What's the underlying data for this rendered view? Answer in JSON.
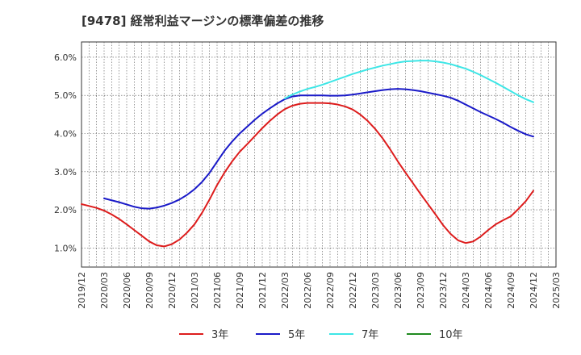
{
  "chart_data": {
    "type": "line",
    "title": "[9478]  経常利益マージンの標準偏差の推移",
    "xlabel": "",
    "ylabel": "",
    "ylim": [
      0.5,
      6.4
    ],
    "y_ticks": [
      {
        "v": 1.0,
        "label": "1.0%"
      },
      {
        "v": 2.0,
        "label": "2.0%"
      },
      {
        "v": 3.0,
        "label": "3.0%"
      },
      {
        "v": 4.0,
        "label": "4.0%"
      },
      {
        "v": 5.0,
        "label": "5.0%"
      },
      {
        "v": 6.0,
        "label": "6.0%"
      }
    ],
    "x_ticks": [
      "2019/12",
      "2020/03",
      "2020/06",
      "2020/09",
      "2020/12",
      "2021/03",
      "2021/06",
      "2021/09",
      "2021/12",
      "2022/03",
      "2022/06",
      "2022/09",
      "2022/12",
      "2023/03",
      "2023/06",
      "2023/09",
      "2023/12",
      "2024/03",
      "2024/06",
      "2024/09",
      "2024/12",
      "2025/03"
    ],
    "grid": true,
    "legend_position": "bottom",
    "colors": {
      "3年": "#dd1c1c",
      "5年": "#1a1ac8",
      "7年": "#3de6e6",
      "10年": "#1f8a1f"
    },
    "series": [
      {
        "name": "3年",
        "x": [
          "2019/12",
          "2020/01",
          "2020/02",
          "2020/03",
          "2020/04",
          "2020/05",
          "2020/06",
          "2020/07",
          "2020/08",
          "2020/09",
          "2020/10",
          "2020/11",
          "2020/12",
          "2021/01",
          "2021/02",
          "2021/03",
          "2021/04",
          "2021/05",
          "2021/06",
          "2021/07",
          "2021/08",
          "2021/09",
          "2021/10",
          "2021/11",
          "2021/12",
          "2022/01",
          "2022/02",
          "2022/03",
          "2022/04",
          "2022/05",
          "2022/06",
          "2022/07",
          "2022/08",
          "2022/09",
          "2022/10",
          "2022/11",
          "2022/12",
          "2023/01",
          "2023/02",
          "2023/03",
          "2023/04",
          "2023/05",
          "2023/06",
          "2023/07",
          "2023/08",
          "2023/09",
          "2023/10",
          "2023/11",
          "2023/12",
          "2024/01",
          "2024/02",
          "2024/03",
          "2024/04",
          "2024/05",
          "2024/06",
          "2024/07",
          "2024/08",
          "2024/09",
          "2024/10",
          "2024/11",
          "2024/12"
        ],
        "values": [
          2.15,
          2.1,
          2.05,
          1.98,
          1.88,
          1.76,
          1.62,
          1.47,
          1.32,
          1.17,
          1.07,
          1.04,
          1.1,
          1.22,
          1.4,
          1.62,
          1.92,
          2.27,
          2.65,
          2.98,
          3.27,
          3.52,
          3.72,
          3.93,
          4.14,
          4.33,
          4.5,
          4.64,
          4.73,
          4.78,
          4.8,
          4.8,
          4.8,
          4.79,
          4.76,
          4.71,
          4.63,
          4.5,
          4.33,
          4.12,
          3.87,
          3.58,
          3.27,
          2.98,
          2.7,
          2.42,
          2.15,
          1.88,
          1.6,
          1.37,
          1.2,
          1.13,
          1.17,
          1.3,
          1.47,
          1.62,
          1.73,
          1.83,
          2.02,
          2.23,
          2.5
        ]
      },
      {
        "name": "5年",
        "x": [
          "2020/03",
          "2020/04",
          "2020/05",
          "2020/06",
          "2020/07",
          "2020/08",
          "2020/09",
          "2020/10",
          "2020/11",
          "2020/12",
          "2021/01",
          "2021/02",
          "2021/03",
          "2021/04",
          "2021/05",
          "2021/06",
          "2021/07",
          "2021/08",
          "2021/09",
          "2021/10",
          "2021/11",
          "2021/12",
          "2022/01",
          "2022/02",
          "2022/03",
          "2022/04",
          "2022/05",
          "2022/06",
          "2022/07",
          "2022/08",
          "2022/09",
          "2022/10",
          "2022/11",
          "2022/12",
          "2023/01",
          "2023/02",
          "2023/03",
          "2023/04",
          "2023/05",
          "2023/06",
          "2023/07",
          "2023/08",
          "2023/09",
          "2023/10",
          "2023/11",
          "2023/12",
          "2024/01",
          "2024/02",
          "2024/03",
          "2024/04",
          "2024/05",
          "2024/06",
          "2024/07",
          "2024/08",
          "2024/09",
          "2024/10",
          "2024/11",
          "2024/12"
        ],
        "values": [
          2.3,
          2.25,
          2.2,
          2.14,
          2.08,
          2.04,
          2.03,
          2.06,
          2.11,
          2.18,
          2.27,
          2.39,
          2.54,
          2.73,
          2.97,
          3.26,
          3.55,
          3.79,
          4.0,
          4.18,
          4.36,
          4.52,
          4.66,
          4.79,
          4.9,
          4.97,
          5.0,
          5.0,
          5.0,
          5.0,
          4.99,
          4.99,
          5.0,
          5.02,
          5.05,
          5.08,
          5.11,
          5.14,
          5.16,
          5.17,
          5.16,
          5.14,
          5.11,
          5.07,
          5.03,
          4.99,
          4.94,
          4.86,
          4.76,
          4.66,
          4.56,
          4.47,
          4.38,
          4.28,
          4.17,
          4.07,
          3.98,
          3.92
        ]
      },
      {
        "name": "7年",
        "x": [
          "2022/03",
          "2022/04",
          "2022/05",
          "2022/06",
          "2022/07",
          "2022/08",
          "2022/09",
          "2022/10",
          "2022/11",
          "2022/12",
          "2023/01",
          "2023/02",
          "2023/03",
          "2023/04",
          "2023/05",
          "2023/06",
          "2023/07",
          "2023/08",
          "2023/09",
          "2023/10",
          "2023/11",
          "2023/12",
          "2024/01",
          "2024/02",
          "2024/03",
          "2024/04",
          "2024/05",
          "2024/06",
          "2024/07",
          "2024/08",
          "2024/09",
          "2024/10",
          "2024/11",
          "2024/12"
        ],
        "values": [
          4.92,
          5.02,
          5.1,
          5.17,
          5.22,
          5.28,
          5.35,
          5.42,
          5.49,
          5.56,
          5.62,
          5.68,
          5.73,
          5.78,
          5.82,
          5.86,
          5.89,
          5.9,
          5.91,
          5.91,
          5.89,
          5.86,
          5.82,
          5.76,
          5.7,
          5.62,
          5.53,
          5.43,
          5.33,
          5.22,
          5.11,
          5.0,
          4.9,
          4.82
        ]
      },
      {
        "name": "10年",
        "x": [],
        "values": []
      }
    ]
  }
}
